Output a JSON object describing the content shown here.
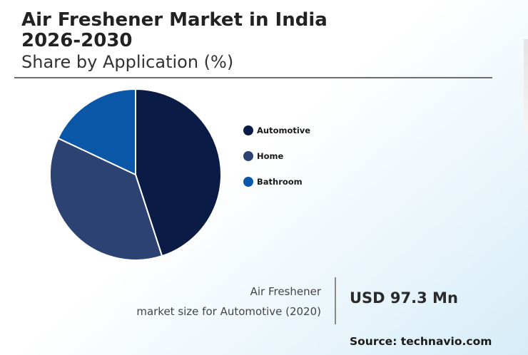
{
  "header": {
    "title": "Air Freshener Market in India 2026-2030",
    "subtitle": "Share by Application (%)"
  },
  "chart_data": {
    "type": "pie",
    "categories": [
      "Automotive",
      "Home",
      "Bathroom"
    ],
    "values": [
      45,
      37,
      18
    ],
    "colors": [
      "#0a1c45",
      "#2c4272",
      "#0a57a8"
    ],
    "legend_position": "right"
  },
  "footer": {
    "stat_label_line1": "Air Freshener",
    "stat_label_line2": "market size for Automotive (2020)",
    "stat_value": "USD 97.3 Mn",
    "source": "Source: technavio.com"
  }
}
